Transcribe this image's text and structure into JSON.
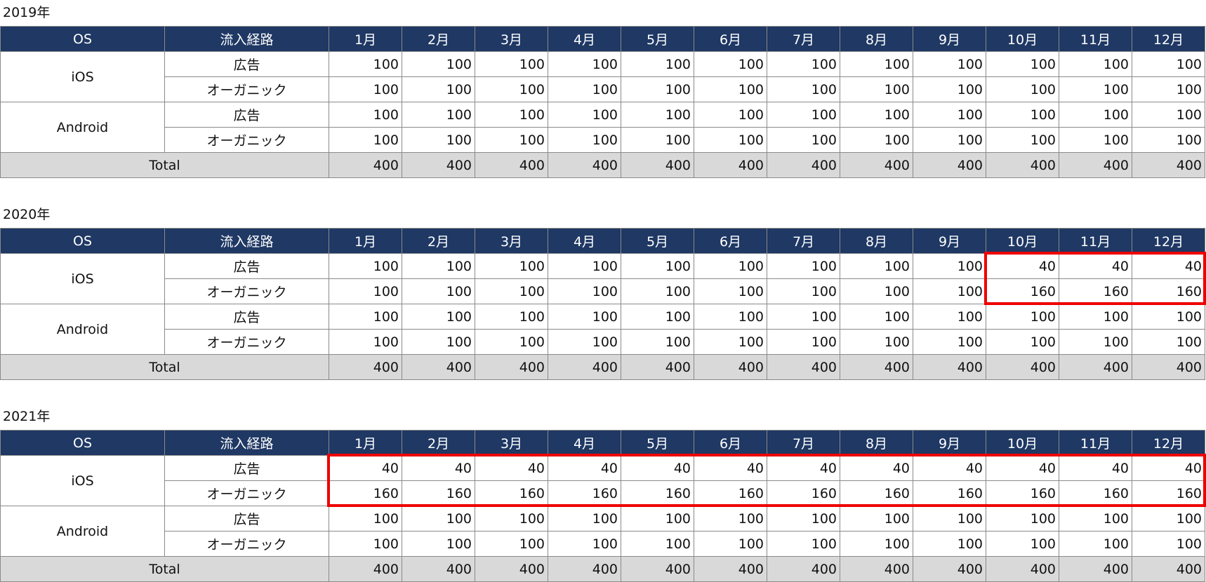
{
  "headers": {
    "os": "OS",
    "route": "流入経路",
    "months": [
      "1月",
      "2月",
      "3月",
      "4月",
      "5月",
      "6月",
      "7月",
      "8月",
      "9月",
      "10月",
      "11月",
      "12月"
    ]
  },
  "labels": {
    "ios": "iOS",
    "android": "Android",
    "ad": "広告",
    "organic": "オーガニック",
    "total": "Total"
  },
  "highlight_color": "#ee0000",
  "header_color": "#1f3864",
  "tables": [
    {
      "year": "2019年",
      "ios_ad": [
        100,
        100,
        100,
        100,
        100,
        100,
        100,
        100,
        100,
        100,
        100,
        100
      ],
      "ios_organic": [
        100,
        100,
        100,
        100,
        100,
        100,
        100,
        100,
        100,
        100,
        100,
        100
      ],
      "android_ad": [
        100,
        100,
        100,
        100,
        100,
        100,
        100,
        100,
        100,
        100,
        100,
        100
      ],
      "android_organic": [
        100,
        100,
        100,
        100,
        100,
        100,
        100,
        100,
        100,
        100,
        100,
        100
      ],
      "total": [
        400,
        400,
        400,
        400,
        400,
        400,
        400,
        400,
        400,
        400,
        400,
        400
      ],
      "highlight_months": []
    },
    {
      "year": "2020年",
      "ios_ad": [
        100,
        100,
        100,
        100,
        100,
        100,
        100,
        100,
        100,
        40,
        40,
        40
      ],
      "ios_organic": [
        100,
        100,
        100,
        100,
        100,
        100,
        100,
        100,
        100,
        160,
        160,
        160
      ],
      "android_ad": [
        100,
        100,
        100,
        100,
        100,
        100,
        100,
        100,
        100,
        100,
        100,
        100
      ],
      "android_organic": [
        100,
        100,
        100,
        100,
        100,
        100,
        100,
        100,
        100,
        100,
        100,
        100
      ],
      "total": [
        400,
        400,
        400,
        400,
        400,
        400,
        400,
        400,
        400,
        400,
        400,
        400
      ],
      "highlight_months": [
        "10月",
        "11月",
        "12月"
      ]
    },
    {
      "year": "2021年",
      "ios_ad": [
        40,
        40,
        40,
        40,
        40,
        40,
        40,
        40,
        40,
        40,
        40,
        40
      ],
      "ios_organic": [
        160,
        160,
        160,
        160,
        160,
        160,
        160,
        160,
        160,
        160,
        160,
        160
      ],
      "android_ad": [
        100,
        100,
        100,
        100,
        100,
        100,
        100,
        100,
        100,
        100,
        100,
        100
      ],
      "android_organic": [
        100,
        100,
        100,
        100,
        100,
        100,
        100,
        100,
        100,
        100,
        100,
        100
      ],
      "total": [
        400,
        400,
        400,
        400,
        400,
        400,
        400,
        400,
        400,
        400,
        400,
        400
      ],
      "highlight_months": [
        "1月",
        "2月",
        "3月",
        "4月",
        "5月",
        "6月",
        "7月",
        "8月",
        "9月",
        "10月",
        "11月",
        "12月"
      ]
    }
  ]
}
